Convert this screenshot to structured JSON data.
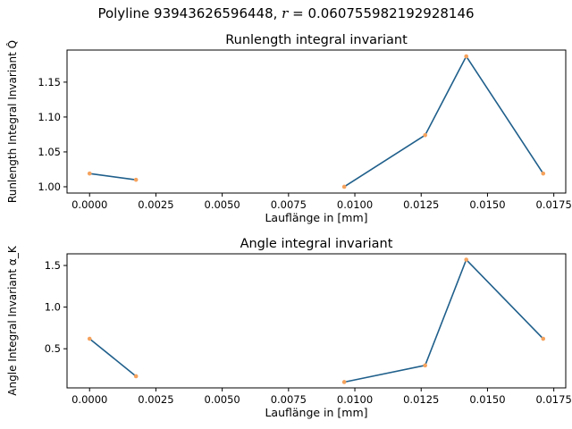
{
  "figure": {
    "suptitle": "Polyline 93943626596448, r = 0.060755982192928146"
  },
  "colors": {
    "line": "#1f5f8b",
    "marker": "#f5a25d"
  },
  "chart_data": [
    {
      "type": "line",
      "title": "Runlength integral invariant",
      "xlabel": "Lauflänge in [mm]",
      "ylabel": "Runlength Integral Invariant Q̂",
      "xlim": [
        -0.00085,
        0.01795
      ],
      "ylim": [
        0.991,
        1.196
      ],
      "xticks": [
        0.0,
        0.0025,
        0.005,
        0.0075,
        0.01,
        0.0125,
        0.015,
        0.0175
      ],
      "xtick_labels": [
        "0.0000",
        "0.0025",
        "0.0050",
        "0.0075",
        "0.0100",
        "0.0125",
        "0.0150",
        "0.0175"
      ],
      "yticks": [
        1.0,
        1.05,
        1.1,
        1.15
      ],
      "ytick_labels": [
        "1.00",
        "1.05",
        "1.10",
        "1.15"
      ],
      "segments": [
        {
          "x": [
            0.0,
            0.00175
          ],
          "y": [
            1.019,
            1.01
          ]
        },
        {
          "x": [
            0.0096,
            0.01265,
            0.0142,
            0.0171
          ],
          "y": [
            1.0,
            1.074,
            1.187,
            1.019
          ]
        }
      ]
    },
    {
      "type": "line",
      "title": "Angle integral invariant",
      "xlabel": "Lauflänge in [mm]",
      "ylabel": "Angle Integral Invariant α_K",
      "xlim": [
        -0.00085,
        0.01795
      ],
      "ylim": [
        0.03,
        1.64
      ],
      "xticks": [
        0.0,
        0.0025,
        0.005,
        0.0075,
        0.01,
        0.0125,
        0.015,
        0.0175
      ],
      "xtick_labels": [
        "0.0000",
        "0.0025",
        "0.0050",
        "0.0075",
        "0.0100",
        "0.0125",
        "0.0150",
        "0.0175"
      ],
      "yticks": [
        0.5,
        1.0,
        1.5
      ],
      "ytick_labels": [
        "0.5",
        "1.0",
        "1.5"
      ],
      "segments": [
        {
          "x": [
            0.0,
            0.00175
          ],
          "y": [
            0.62,
            0.17
          ]
        },
        {
          "x": [
            0.0096,
            0.01265,
            0.0142,
            0.0171
          ],
          "y": [
            0.1,
            0.3,
            1.57,
            0.62
          ]
        }
      ]
    }
  ]
}
